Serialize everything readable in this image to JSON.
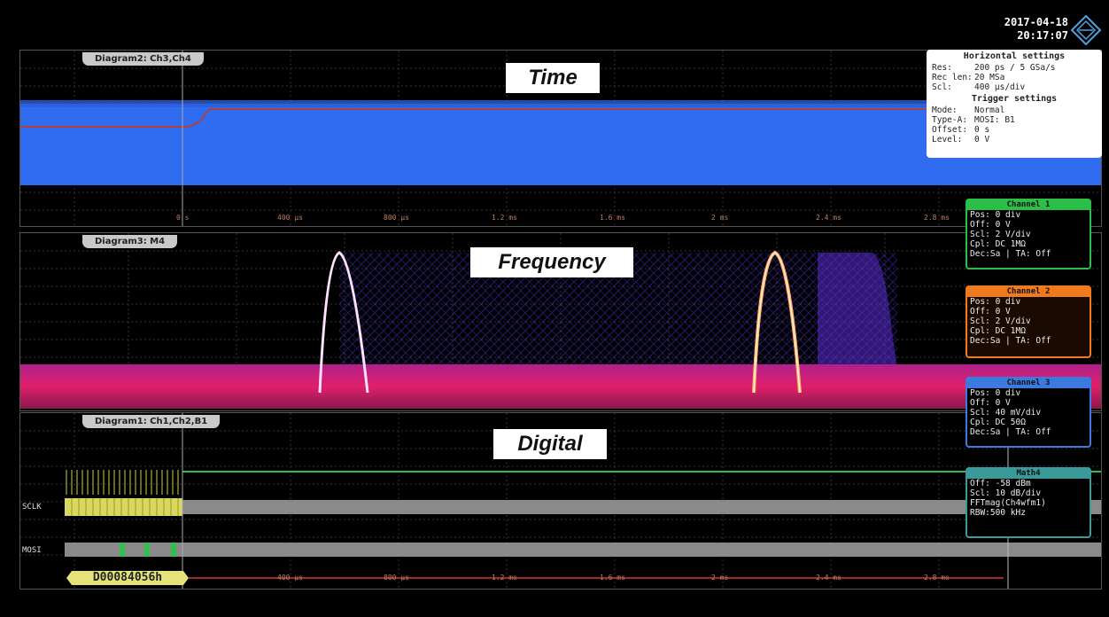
{
  "status": {
    "date": "2017-04-18",
    "time": "20:17:07"
  },
  "captions": {
    "time": "Time",
    "frequency": "Frequency",
    "digital": "Digital"
  },
  "diagrams": {
    "time": {
      "tab": "Diagram2: Ch3,Ch4"
    },
    "frequency": {
      "tab": "Diagram3: M4"
    },
    "digital": {
      "tab": "Diagram1: Ch1,Ch2,B1"
    }
  },
  "horizontal_settings": {
    "title": "Horizontal settings",
    "rows": [
      {
        "key": "Res:",
        "value": "200 ps / 5 GSa/s"
      },
      {
        "key": "Rec len:",
        "value": "20 MSa"
      },
      {
        "key": "Scl:",
        "value": "400 µs/div"
      }
    ]
  },
  "trigger_settings": {
    "title": "Trigger settings",
    "rows": [
      {
        "key": "Mode:",
        "value": "Normal"
      },
      {
        "key": "Type-A:",
        "value": "MOSI: B1"
      },
      {
        "key": "Offset:",
        "value": "0 s"
      },
      {
        "key": "Level:",
        "value": "0 V"
      }
    ]
  },
  "channels": [
    {
      "name": "Channel 1",
      "color": "#2bbf4a",
      "rows": [
        "Pos: 0 div",
        "Off: 0 V",
        "Scl: 2 V/div",
        "Cpl: DC 1MΩ",
        "Dec:Sa | TA: Off"
      ]
    },
    {
      "name": "Channel 2",
      "color": "#f07a1e",
      "rows": [
        "Pos: 0 div",
        "Off: 0 V",
        "Scl: 2 V/div",
        "Cpl: DC 1MΩ",
        "Dec:Sa | TA: Off"
      ]
    },
    {
      "name": "Channel 3",
      "color": "#3b7be0",
      "rows": [
        "Pos: 0 div",
        "Off: 0 V",
        "Scl: 40 mV/div",
        "Cpl: DC 50Ω",
        "Dec:Sa | TA: Off"
      ]
    },
    {
      "name": "Math4",
      "color": "#3a9a9a",
      "rows": [
        "Off: -58 dBm",
        "Scl: 10 dB/div",
        "FFTmag(Ch4wfm1)",
        "RBW:500 kHz"
      ]
    }
  ],
  "time_axis_labels": [
    "0 s",
    "400 µs",
    "800 µs",
    "1.2 ms",
    "1.6 ms",
    "2 ms",
    "2.4 ms",
    "2.8 ms"
  ],
  "digital_axis_labels": [
    "400 µs",
    "800 µs",
    "1.2 ms",
    "1.6 ms",
    "2 ms",
    "2.4 ms",
    "2.8 ms"
  ],
  "signals": {
    "sclk": "SCLK",
    "mosi": "MOSI",
    "bus_value": "D00084056h"
  },
  "colors": {
    "time_trace": "#2f6cf0",
    "ref_trace": "#b04040",
    "spectrum_low": "#d01f8a",
    "spectrum_peak": "#ffd0ff",
    "digital_high": "#2fbf4a",
    "sclk_fill": "#d8d860",
    "bus_value": "#e4e37a"
  }
}
